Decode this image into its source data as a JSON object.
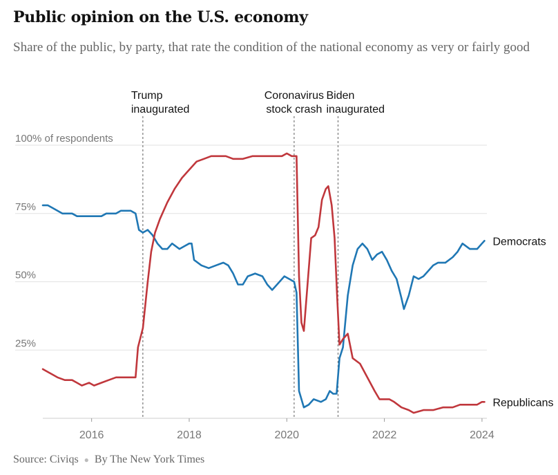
{
  "title": "Public opinion on the U.S. economy",
  "subtitle": "Share of the public, by party, that rate the condition of the national economy as very or fairly good",
  "source": {
    "label": "Source: Civiqs",
    "byline": "By The New York Times"
  },
  "colors": {
    "democrats": "#1f77b4",
    "republicans": "#c0373c",
    "grid": "#e2e2e2",
    "text": "#666666"
  },
  "chart_data": {
    "type": "line",
    "title": "Public opinion on the U.S. economy",
    "subtitle": "Share of the public, by party, that rate the condition of the national economy as very or fairly good",
    "ylabel": "",
    "y_unit_label": "100% of respondents",
    "ylim": [
      0,
      100
    ],
    "xlim": [
      2015.0,
      2024.1
    ],
    "x_ticks": [
      {
        "value": 2016,
        "label": "2016"
      },
      {
        "value": 2018,
        "label": "2018"
      },
      {
        "value": 2020,
        "label": "2020"
      },
      {
        "value": 2022,
        "label": "2022"
      },
      {
        "value": 2024,
        "label": "2024"
      }
    ],
    "y_ticks": [
      {
        "value": 100,
        "label": "100% of respondents"
      },
      {
        "value": 75,
        "label": "75%"
      },
      {
        "value": 50,
        "label": "50%"
      },
      {
        "value": 25,
        "label": "25%"
      }
    ],
    "grid": true,
    "legend": "direct labels at line ends",
    "annotations": [
      {
        "x": 2017.05,
        "label": [
          "Trump",
          "inaugurated"
        ],
        "align": "start"
      },
      {
        "x": 2020.15,
        "label": [
          "Coronavirus",
          "stock crash"
        ],
        "align": "middle"
      },
      {
        "x": 2021.05,
        "label": [
          "Biden",
          "inaugurated"
        ],
        "align": "start"
      }
    ],
    "series": [
      {
        "name": "Democrats",
        "color": "#1f77b4",
        "points": [
          [
            2015.0,
            78
          ],
          [
            2015.1,
            78
          ],
          [
            2015.2,
            77
          ],
          [
            2015.3,
            76
          ],
          [
            2015.4,
            75
          ],
          [
            2015.6,
            75
          ],
          [
            2015.7,
            74
          ],
          [
            2015.9,
            74
          ],
          [
            2016.0,
            74
          ],
          [
            2016.2,
            74
          ],
          [
            2016.3,
            75
          ],
          [
            2016.5,
            75
          ],
          [
            2016.6,
            76
          ],
          [
            2016.8,
            76
          ],
          [
            2016.9,
            75
          ],
          [
            2016.97,
            69
          ],
          [
            2017.05,
            68
          ],
          [
            2017.15,
            69
          ],
          [
            2017.25,
            67
          ],
          [
            2017.35,
            64
          ],
          [
            2017.45,
            62
          ],
          [
            2017.55,
            62
          ],
          [
            2017.65,
            64
          ],
          [
            2017.8,
            62
          ],
          [
            2017.9,
            63
          ],
          [
            2018.0,
            64
          ],
          [
            2018.05,
            64
          ],
          [
            2018.1,
            58
          ],
          [
            2018.25,
            56
          ],
          [
            2018.4,
            55
          ],
          [
            2018.55,
            56
          ],
          [
            2018.7,
            57
          ],
          [
            2018.8,
            56
          ],
          [
            2018.9,
            53
          ],
          [
            2019.0,
            49
          ],
          [
            2019.1,
            49
          ],
          [
            2019.2,
            52
          ],
          [
            2019.35,
            53
          ],
          [
            2019.5,
            52
          ],
          [
            2019.6,
            49
          ],
          [
            2019.7,
            47
          ],
          [
            2019.8,
            49
          ],
          [
            2019.95,
            52
          ],
          [
            2020.05,
            51
          ],
          [
            2020.15,
            50
          ],
          [
            2020.2,
            46
          ],
          [
            2020.25,
            10
          ],
          [
            2020.35,
            4
          ],
          [
            2020.45,
            5
          ],
          [
            2020.55,
            7
          ],
          [
            2020.7,
            6
          ],
          [
            2020.8,
            7
          ],
          [
            2020.88,
            10
          ],
          [
            2020.95,
            9
          ],
          [
            2021.02,
            9
          ],
          [
            2021.08,
            22
          ],
          [
            2021.15,
            26
          ],
          [
            2021.25,
            45
          ],
          [
            2021.35,
            56
          ],
          [
            2021.45,
            62
          ],
          [
            2021.55,
            64
          ],
          [
            2021.65,
            62
          ],
          [
            2021.75,
            58
          ],
          [
            2021.85,
            60
          ],
          [
            2021.95,
            61
          ],
          [
            2022.05,
            58
          ],
          [
            2022.15,
            54
          ],
          [
            2022.25,
            51
          ],
          [
            2022.35,
            44
          ],
          [
            2022.4,
            40
          ],
          [
            2022.5,
            45
          ],
          [
            2022.6,
            52
          ],
          [
            2022.7,
            51
          ],
          [
            2022.8,
            52
          ],
          [
            2022.9,
            54
          ],
          [
            2023.0,
            56
          ],
          [
            2023.1,
            57
          ],
          [
            2023.25,
            57
          ],
          [
            2023.4,
            59
          ],
          [
            2023.5,
            61
          ],
          [
            2023.6,
            64
          ],
          [
            2023.75,
            62
          ],
          [
            2023.9,
            62
          ],
          [
            2024.0,
            64
          ],
          [
            2024.05,
            65
          ]
        ]
      },
      {
        "name": "Republicans",
        "color": "#c0373c",
        "points": [
          [
            2015.0,
            18
          ],
          [
            2015.1,
            17
          ],
          [
            2015.2,
            16
          ],
          [
            2015.3,
            15
          ],
          [
            2015.45,
            14
          ],
          [
            2015.6,
            14
          ],
          [
            2015.7,
            13
          ],
          [
            2015.8,
            12
          ],
          [
            2015.95,
            13
          ],
          [
            2016.05,
            12
          ],
          [
            2016.2,
            13
          ],
          [
            2016.35,
            14
          ],
          [
            2016.5,
            15
          ],
          [
            2016.7,
            15
          ],
          [
            2016.9,
            15
          ],
          [
            2016.95,
            26
          ],
          [
            2017.05,
            33
          ],
          [
            2017.15,
            50
          ],
          [
            2017.22,
            61
          ],
          [
            2017.3,
            68
          ],
          [
            2017.4,
            73
          ],
          [
            2017.55,
            79
          ],
          [
            2017.7,
            84
          ],
          [
            2017.85,
            88
          ],
          [
            2017.95,
            90
          ],
          [
            2018.05,
            92
          ],
          [
            2018.15,
            94
          ],
          [
            2018.3,
            95
          ],
          [
            2018.45,
            96
          ],
          [
            2018.6,
            96
          ],
          [
            2018.75,
            96
          ],
          [
            2018.9,
            95
          ],
          [
            2019.1,
            95
          ],
          [
            2019.3,
            96
          ],
          [
            2019.5,
            96
          ],
          [
            2019.7,
            96
          ],
          [
            2019.9,
            96
          ],
          [
            2020.0,
            97
          ],
          [
            2020.1,
            96
          ],
          [
            2020.2,
            96
          ],
          [
            2020.25,
            52
          ],
          [
            2020.3,
            35
          ],
          [
            2020.35,
            32
          ],
          [
            2020.42,
            48
          ],
          [
            2020.5,
            66
          ],
          [
            2020.58,
            67
          ],
          [
            2020.65,
            70
          ],
          [
            2020.72,
            80
          ],
          [
            2020.8,
            84
          ],
          [
            2020.85,
            85
          ],
          [
            2020.92,
            78
          ],
          [
            2020.98,
            66
          ],
          [
            2021.03,
            45
          ],
          [
            2021.08,
            27
          ],
          [
            2021.15,
            29
          ],
          [
            2021.25,
            31
          ],
          [
            2021.35,
            22
          ],
          [
            2021.5,
            20
          ],
          [
            2021.65,
            15
          ],
          [
            2021.8,
            10
          ],
          [
            2021.9,
            7
          ],
          [
            2022.1,
            7
          ],
          [
            2022.2,
            6
          ],
          [
            2022.35,
            4
          ],
          [
            2022.5,
            3
          ],
          [
            2022.6,
            2
          ],
          [
            2022.8,
            3
          ],
          [
            2023.0,
            3
          ],
          [
            2023.2,
            4
          ],
          [
            2023.4,
            4
          ],
          [
            2023.55,
            5
          ],
          [
            2023.7,
            5
          ],
          [
            2023.9,
            5
          ],
          [
            2024.0,
            6
          ],
          [
            2024.05,
            6
          ]
        ]
      }
    ]
  }
}
